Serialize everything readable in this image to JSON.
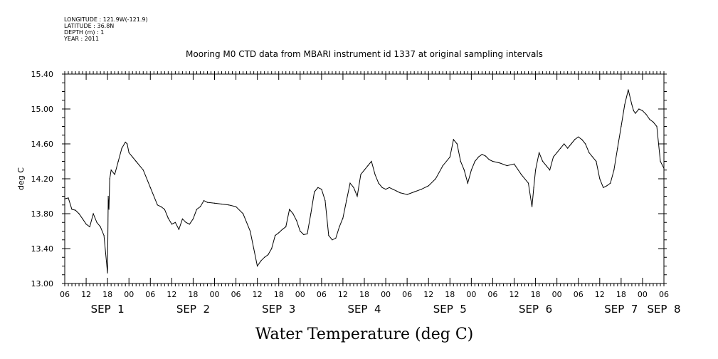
{
  "meta_lines": [
    "LONGITUDE : 121.9W(-121.9)",
    "LATITUDE : 36.8N",
    "DEPTH (m) : 1",
    "YEAR : 2011"
  ],
  "chart_data": {
    "type": "line",
    "title": "Mooring M0 CTD data from MBARI instrument id 1337 at original sampling intervals",
    "xlabel": "Water Temperature (deg C)",
    "ylabel": "deg C",
    "ylim": [
      13.0,
      15.4
    ],
    "y_ticks": [
      "13.00",
      "13.40",
      "13.80",
      "14.20",
      "14.60",
      "15.00",
      "15.40"
    ],
    "x_hour_labels": [
      "06",
      "12",
      "18",
      "00",
      "06",
      "12",
      "18",
      "00",
      "06",
      "12",
      "18",
      "00",
      "06",
      "12",
      "18",
      "00",
      "06",
      "12",
      "18",
      "00",
      "06",
      "12",
      "18",
      "00",
      "06",
      "12",
      "18",
      "00",
      "06"
    ],
    "x_day_labels": [
      {
        "text": "SEP  1",
        "hour": 12
      },
      {
        "text": "SEP  2",
        "hour": 36
      },
      {
        "text": "SEP  3",
        "hour": 60
      },
      {
        "text": "SEP  4",
        "hour": 84
      },
      {
        "text": "SEP  5",
        "hour": 108
      },
      {
        "text": "SEP  6",
        "hour": 132
      },
      {
        "text": "SEP  7",
        "hour": 156
      },
      {
        "text": "SEP  8",
        "hour": 168
      }
    ],
    "grid": false,
    "series": [
      {
        "x_hours": [
          0,
          1,
          2,
          3,
          4,
          5,
          6,
          7,
          8,
          9,
          10,
          11,
          12,
          12.2,
          12.4,
          12.6,
          13,
          14,
          15,
          16,
          17,
          17.5,
          18,
          19,
          20,
          22,
          24,
          26,
          27,
          28,
          29,
          30,
          31,
          32,
          33,
          34,
          35,
          36,
          37,
          38,
          39,
          40,
          42,
          44,
          46,
          48,
          50,
          52,
          53,
          54,
          55,
          56,
          57,
          58,
          59,
          60,
          61,
          62,
          63,
          64,
          65,
          66,
          67,
          68,
          69,
          70,
          71,
          72,
          73,
          74,
          75,
          76,
          77,
          78,
          79,
          80,
          81,
          82,
          83,
          84,
          85,
          86,
          87,
          88,
          89,
          90,
          91,
          92,
          93,
          94,
          95,
          96,
          98,
          100,
          102,
          104,
          106,
          108,
          109,
          110,
          111,
          112,
          113,
          114,
          115,
          116,
          117,
          118,
          119,
          120,
          122,
          124,
          126,
          128,
          130,
          131,
          131.5,
          132,
          133,
          134,
          135,
          136,
          137,
          138,
          139,
          140,
          141,
          142,
          143,
          144,
          145,
          146,
          147,
          148,
          149,
          150,
          151,
          152,
          153,
          154,
          155,
          156,
          157,
          158,
          159,
          159.5,
          160,
          161,
          162,
          163,
          164,
          165,
          166,
          167,
          168
        ],
        "values": [
          13.97,
          13.98,
          13.85,
          13.84,
          13.8,
          13.74,
          13.68,
          13.65,
          13.8,
          13.7,
          13.65,
          13.55,
          13.12,
          14.0,
          13.85,
          14.2,
          14.3,
          14.25,
          14.4,
          14.55,
          14.62,
          14.6,
          14.5,
          14.45,
          14.4,
          14.3,
          14.1,
          13.9,
          13.88,
          13.85,
          13.75,
          13.68,
          13.7,
          13.62,
          13.74,
          13.7,
          13.68,
          13.74,
          13.85,
          13.88,
          13.95,
          13.93,
          13.92,
          13.91,
          13.9,
          13.88,
          13.8,
          13.6,
          13.4,
          13.2,
          13.26,
          13.3,
          13.33,
          13.4,
          13.55,
          13.58,
          13.62,
          13.65,
          13.85,
          13.8,
          13.72,
          13.6,
          13.56,
          13.57,
          13.8,
          14.05,
          14.1,
          14.08,
          13.95,
          13.55,
          13.5,
          13.52,
          13.65,
          13.75,
          13.95,
          14.15,
          14.1,
          14.0,
          14.25,
          14.3,
          14.35,
          14.4,
          14.25,
          14.15,
          14.1,
          14.08,
          14.1,
          14.08,
          14.06,
          14.04,
          14.03,
          14.02,
          14.05,
          14.08,
          14.12,
          14.2,
          14.35,
          14.45,
          14.65,
          14.6,
          14.4,
          14.3,
          14.15,
          14.3,
          14.4,
          14.45,
          14.48,
          14.46,
          14.42,
          14.4,
          14.38,
          14.35,
          14.37,
          14.25,
          14.15,
          13.88,
          14.1,
          14.3,
          14.5,
          14.4,
          14.35,
          14.3,
          14.45,
          14.5,
          14.55,
          14.6,
          14.55,
          14.6,
          14.65,
          14.68,
          14.65,
          14.6,
          14.5,
          14.45,
          14.4,
          14.2,
          14.1,
          14.12,
          14.15,
          14.3,
          14.55,
          14.8,
          15.05,
          15.22,
          15.05,
          14.98,
          14.95,
          15.0,
          14.98,
          14.94,
          14.88,
          14.85,
          14.8,
          14.4,
          14.32
        ]
      }
    ]
  }
}
